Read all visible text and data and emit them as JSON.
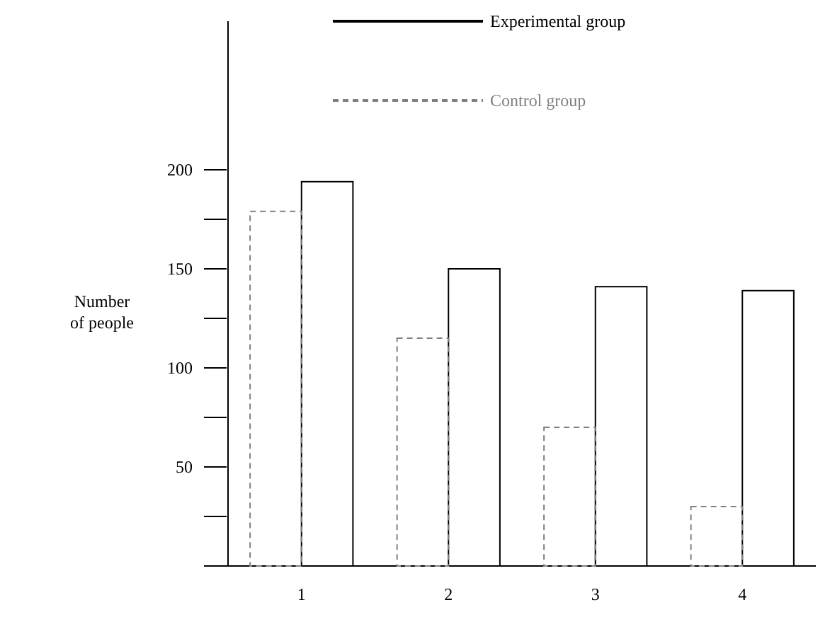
{
  "chart_data": {
    "type": "bar",
    "ylabel": "Number of people",
    "categories": [
      "1",
      "2",
      "3",
      "4"
    ],
    "series": [
      {
        "name": "Experimental group",
        "color": "#000000",
        "line_style": "solid",
        "values": [
          194,
          150,
          141,
          139
        ]
      },
      {
        "name": "Control group",
        "color": "#808080",
        "line_style": "dashed",
        "values": [
          179,
          115,
          70,
          30
        ]
      }
    ],
    "ylim": [
      0,
      275
    ],
    "yticks": [
      {
        "value": 25,
        "label": null
      },
      50,
      {
        "value": 75,
        "label": null
      },
      100,
      {
        "value": 125,
        "label": null
      },
      150,
      {
        "value": 175,
        "label": null
      },
      200
    ],
    "legend": "top",
    "grid": false
  }
}
